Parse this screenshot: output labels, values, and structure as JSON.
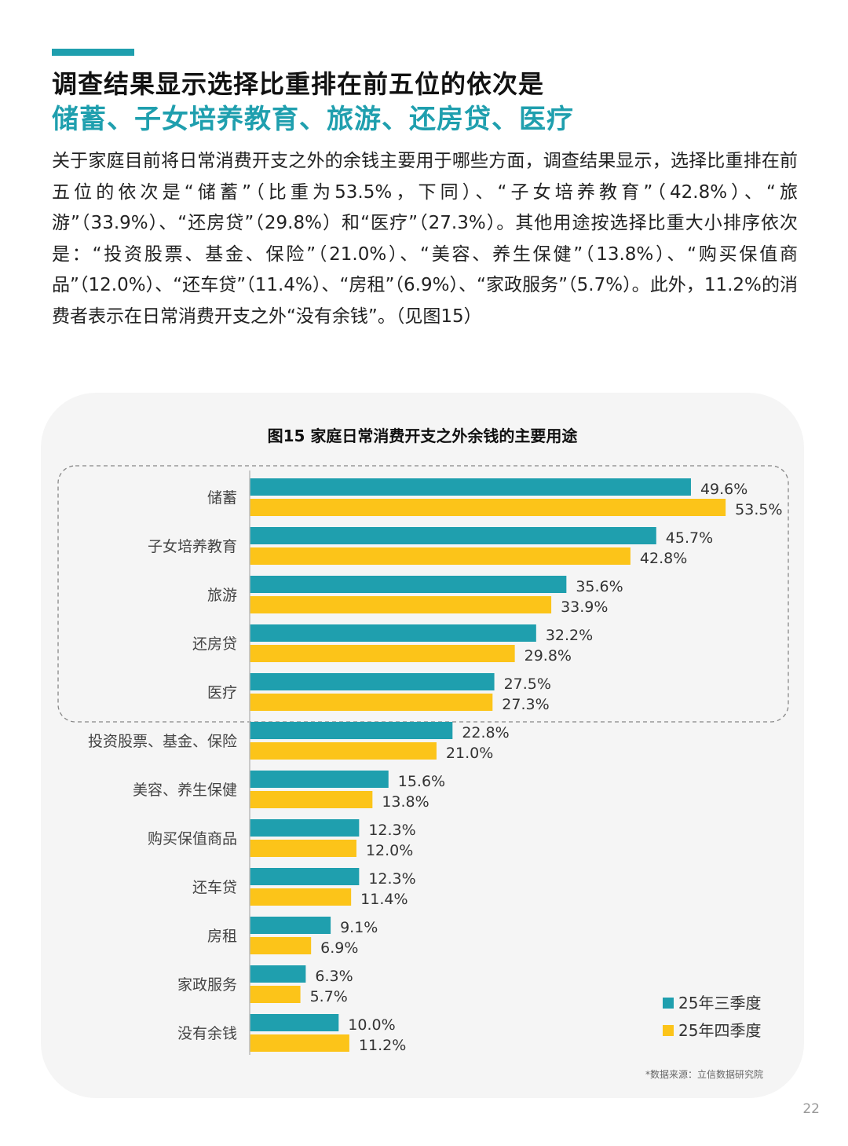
{
  "header": {
    "title_line1": "调查结果显示选择比重排在前五位的依次是",
    "title_line2": "储蓄、子女培养教育、旅游、还房贷、医疗"
  },
  "intro": {
    "text": "关于家庭目前将日常消费开支之外的余钱主要用于哪些方面，调查结果显示，选择比重排在前五位的依次是“储蓄”（比重为53.5%，下同）、“子女培养教育”（42.8%）、“旅游”（33.9%）、“还房贷”（29.8%）和“医疗”（27.3%）。其他用途按选择比重大小排序依次是：“投资股票、基金、保险”（21.0%）、“美容、养生保健”（13.8%）、“购买保值商品”（12.0%）、“还车贷”（11.4%）、“房租”（6.9%）、“家政服务”（5.7%）。此外，11.2%的消费者表示在日常消费开支之外“没有余钱”。（见图15）"
  },
  "chart_data": {
    "type": "bar",
    "orientation": "horizontal",
    "title": "图15 家庭日常消费开支之外余钱的主要用途",
    "categories": [
      "储蓄",
      "子女培养教育",
      "旅游",
      "还房贷",
      "医疗",
      "投资股票、基金、保险",
      "美容、养生保健",
      "购买保值商品",
      "还车贷",
      "房租",
      "家政服务",
      "没有余钱"
    ],
    "series": [
      {
        "name": "25年三季度",
        "color": "#1f9fae",
        "values": [
          49.6,
          45.7,
          35.6,
          32.2,
          27.5,
          22.8,
          15.6,
          12.3,
          12.3,
          9.1,
          6.3,
          10.0
        ]
      },
      {
        "name": "25年四季度",
        "color": "#fcc419",
        "values": [
          53.5,
          42.8,
          33.9,
          29.8,
          27.3,
          21.0,
          13.8,
          12.0,
          11.4,
          6.9,
          5.7,
          11.2
        ]
      }
    ],
    "value_suffix": "%",
    "xlim": [
      0,
      60
    ],
    "highlight_top_n": 5,
    "legend_position": "bottom-right",
    "source": "*数据来源：立信数据研究院"
  },
  "page": {
    "number": "22"
  }
}
